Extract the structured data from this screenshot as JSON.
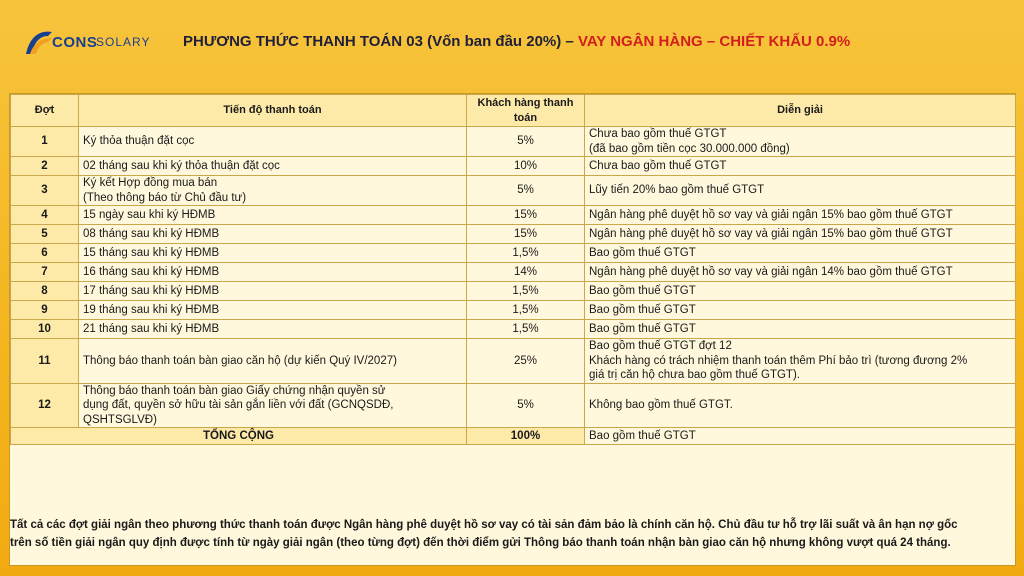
{
  "logo": {
    "cons": "CONS",
    "solary": "SOLARY"
  },
  "title": {
    "main": "PHƯƠNG THỨC THANH TOÁN 03 (Vốn ban đầu 20%) – ",
    "highlight": "VAY NGÂN HÀNG – CHIẾT KHẤU 0.9%"
  },
  "table": {
    "headers": [
      "Đợt",
      "Tiến độ thanh toán",
      "Khách hàng thanh toán",
      "Diễn giải"
    ],
    "rows": [
      {
        "dot": "1",
        "tien_do": "Ký thỏa thuận đặt cọc",
        "tt": "5%",
        "dien_giai_1": "Chưa bao gồm thuế GTGT",
        "dien_giai_2": "(đã bao gồm tiền cọc 30.000.000 đồng)"
      },
      {
        "dot": "2",
        "tien_do": "02 tháng sau khi ký thỏa thuận đặt cọc",
        "tt": "10%",
        "dien_giai_1": "Chưa bao gồm thuế GTGT"
      },
      {
        "dot": "3",
        "tien_do": "Ký kết Hợp đồng mua bán",
        "tien_do_2": "(Theo thông báo từ Chủ đầu tư)",
        "tt": "5%",
        "dien_giai_1": "Lũy tiến 20% bao gồm thuế GTGT"
      },
      {
        "dot": "4",
        "tien_do": "15 ngày sau khi ký HĐMB",
        "tt": "15%",
        "dien_giai_1": "Ngân hàng phê duyệt hồ sơ vay và giải ngân 15% bao gồm thuế GTGT"
      },
      {
        "dot": "5",
        "tien_do": "08 tháng sau khi ký HĐMB",
        "tt": "15%",
        "dien_giai_1": "Ngân hàng phê duyệt hồ sơ vay và giải ngân 15% bao gồm thuế GTGT"
      },
      {
        "dot": "6",
        "tien_do": "15 tháng sau khi ký HĐMB",
        "tt": "1,5%",
        "dien_giai_1": "Bao gồm thuế GTGT"
      },
      {
        "dot": "7",
        "tien_do": "16 tháng sau khi ký HĐMB",
        "tt": "14%",
        "dien_giai_1": "Ngân hàng phê duyệt hồ sơ vay và giải ngân 14% bao gồm thuế GTGT"
      },
      {
        "dot": "8",
        "tien_do": "17 tháng sau khi ký HĐMB",
        "tt": "1,5%",
        "dien_giai_1": "Bao gồm thuế GTGT"
      },
      {
        "dot": "9",
        "tien_do": "19 tháng sau khi ký HĐMB",
        "tt": "1,5%",
        "dien_giai_1": "Bao gồm thuế GTGT"
      },
      {
        "dot": "10",
        "tien_do": "21 tháng sau khi ký HĐMB",
        "tt": "1,5%",
        "dien_giai_1": "Bao gồm thuế GTGT"
      },
      {
        "dot": "11",
        "tien_do": "Thông báo thanh toán bàn giao căn hộ (dự kiến Quý IV/2027)",
        "tt": "25%",
        "dien_giai_1": "Bao gồm thuế GTGT đợt 12",
        "dien_giai_2": "Khách hàng có trách nhiệm thanh toán thêm Phí bảo trì (tương đương 2%",
        "dien_giai_3": "giá trị căn hộ chưa bao gồm thuế GTGT)."
      },
      {
        "dot": "12",
        "tien_do": "Thông báo thanh toán bàn giao Giấy chứng nhận quyền sử",
        "tien_do_2": "dụng đất, quyền sở hữu tài sản gắn liền với đất (GCNQSDĐ,",
        "tien_do_3": "QSHTSGLVĐ)",
        "tt": "5%",
        "dien_giai_1": "Không bao gồm thuế GTGT."
      }
    ],
    "total": {
      "label": "TỔNG CỘNG",
      "tt": "100%",
      "dien_giai": "Bao gồm thuế GTGT"
    }
  },
  "footer": {
    "line1": "Tất cả các đợt giải ngân theo phương thức thanh toán được Ngân hàng phê duyệt hồ sơ vay có tài sản đảm bảo là chính căn hộ. Chủ đầu tư hỗ trợ lãi suất và ân hạn nợ gốc",
    "line2": "trên số tiền giải ngân quy định được tính từ ngày giải ngân (theo từng đợt) đến thời điểm gửi Thông báo thanh toán nhận bàn giao căn hộ nhưng không vượt quá 24 tháng."
  }
}
